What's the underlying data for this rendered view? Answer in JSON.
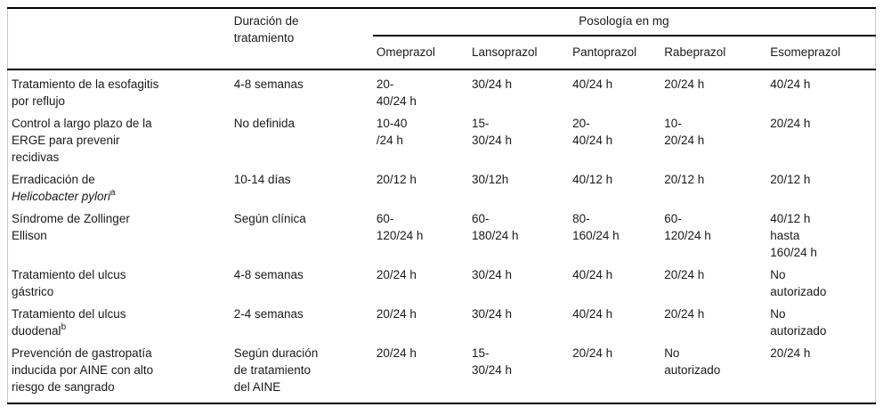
{
  "table": {
    "header": {
      "corner_label": "",
      "duration_label": "Duración de\ntratamiento",
      "posologia_label": "Posología en mg",
      "drugs": [
        "Omeprazol",
        "Lansoprazol",
        "Pantoprazol",
        "Rabeprazol",
        "Esomeprazol"
      ]
    },
    "rows": [
      {
        "indication": "Tratamiento de la esofagitis\npor reflujo",
        "duration": "4-8 semanas",
        "doses": [
          "20-\n40/24 h",
          "30/24 h",
          "40/24 h",
          "20/24 h",
          "40/24 h"
        ]
      },
      {
        "indication": "Control a largo plazo de la\nERGE para prevenir\nrecidivas",
        "duration": "No definida",
        "doses": [
          "10-40\n/24 h",
          "15-\n30/24 h",
          "20-\n40/24 h",
          "10-\n20/24 h",
          "20/24 h"
        ]
      },
      {
        "indication": "Erradicación de\n*Helicobacter pylori*^a",
        "duration": "10-14 días",
        "doses": [
          "20/12 h",
          "30/12h",
          "40/12 h",
          "20/12 h",
          "20/12 h"
        ]
      },
      {
        "indication": "Síndrome de Zollinger\nEllison",
        "duration": "Según clínica",
        "doses": [
          "60-\n120/24 h",
          "60-\n180/24 h",
          "80-\n160/24 h",
          "60-\n120/24 h",
          "40/12 h\nhasta\n160/24 h"
        ]
      },
      {
        "indication": "Tratamiento del ulcus\ngástrico",
        "duration": "4-8 semanas",
        "doses": [
          "20/24 h",
          "30/24 h",
          "40/24 h",
          "20/24 h",
          "No\nautorizado"
        ]
      },
      {
        "indication": "Tratamiento del ulcus\nduodenal^b",
        "duration": "2-4 semanas",
        "doses": [
          "20/24 h",
          "30/24 h",
          "40/24 h",
          "20/24 h",
          "No\nautorizado"
        ]
      },
      {
        "indication": "Prevención de gastropatía\ninducida por AINE con alto\nriesgo de sangrado",
        "duration": "Según duración\nde tratamiento\ndel AINE",
        "doses": [
          "20/24 h",
          "15-\n30/24 h",
          "20/24 h",
          "No\nautorizado",
          "20/24 h"
        ]
      }
    ]
  },
  "colors": {
    "text": "#1a1a1a",
    "rule": "#000000",
    "side_border": "#c9c9c9",
    "background": "#ffffff"
  }
}
